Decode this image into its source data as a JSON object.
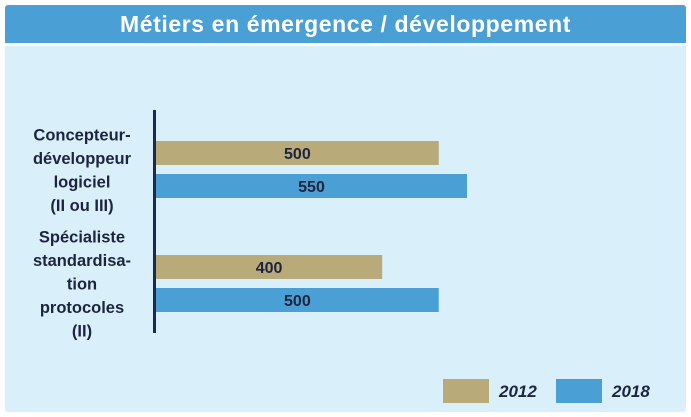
{
  "title": "Métiers en émergence / développement",
  "colors": {
    "header": "#4a9fd4",
    "background": "#d9effa",
    "series_2012": "#b8ab79",
    "series_2018": "#4a9fd4",
    "axis": "#1b2a4a",
    "text": "#1e2440"
  },
  "chart_data": {
    "type": "bar",
    "orientation": "horizontal",
    "categories": [
      [
        "Concepteur-",
        "développeur",
        "logiciel",
        "(II ou III)"
      ],
      [
        "Spécialiste",
        "standardisa-",
        "tion",
        "protocoles",
        "(II)"
      ]
    ],
    "series": [
      {
        "name": "2012",
        "values": [
          500,
          400
        ],
        "color": "#b8ab79"
      },
      {
        "name": "2018",
        "values": [
          550,
          500
        ],
        "color": "#4a9fd4"
      }
    ],
    "xlim": [
      0,
      560
    ],
    "data_labels": true,
    "legend": "bottom-right",
    "grid": false
  }
}
